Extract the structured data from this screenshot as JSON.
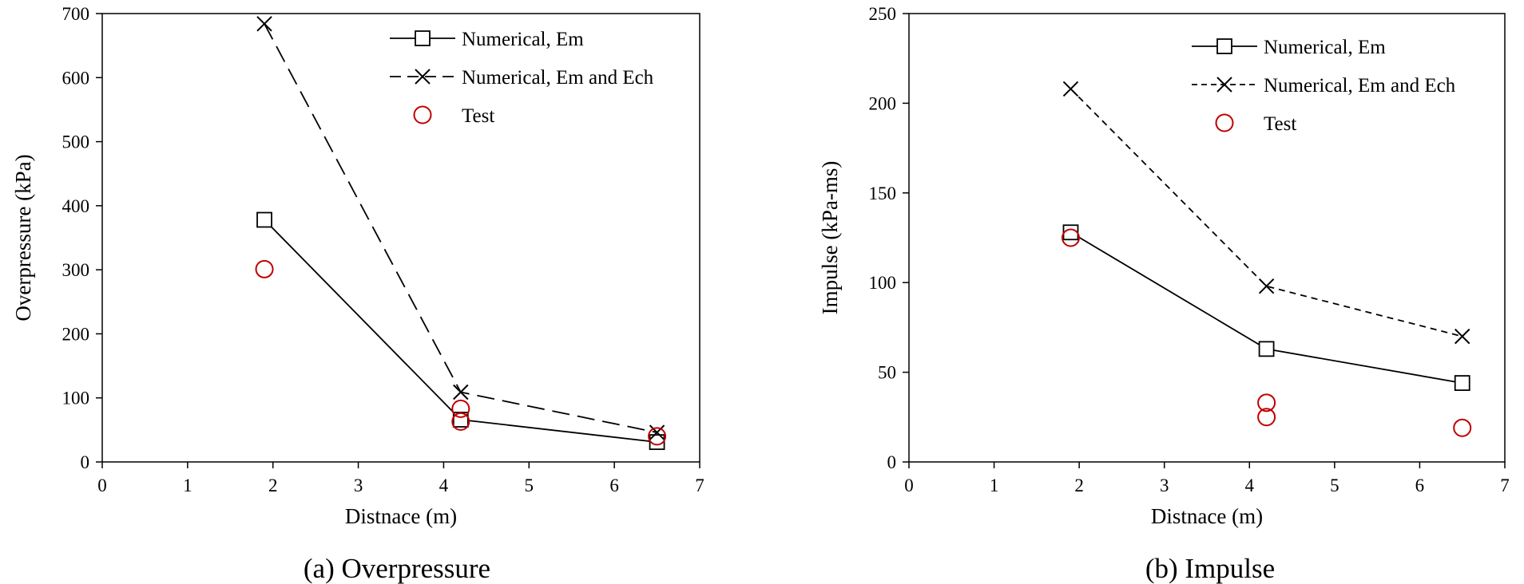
{
  "chart_data": [
    {
      "type": "line",
      "caption": "(a) Overpressure",
      "xlabel": "Distnace (m)",
      "ylabel": "Overpressure (kPa)",
      "xlim": [
        0,
        7
      ],
      "ylim": [
        0,
        700
      ],
      "xticks": [
        0,
        1,
        2,
        3,
        4,
        5,
        6,
        7
      ],
      "yticks": [
        0,
        100,
        200,
        300,
        400,
        500,
        600,
        700
      ],
      "grid": false,
      "legend_position": "top-right",
      "series": [
        {
          "name": "Numerical, Em",
          "marker": "square",
          "line": "solid",
          "color": "#000000",
          "x": [
            1.9,
            4.2,
            6.5
          ],
          "y": [
            378,
            66,
            31
          ]
        },
        {
          "name": "Numerical, Em and Ech",
          "marker": "x",
          "line": "long-dash",
          "color": "#000000",
          "x": [
            1.9,
            4.2,
            6.5
          ],
          "y": [
            684,
            109,
            46
          ]
        },
        {
          "name": "Test",
          "marker": "circle",
          "line": "none",
          "color": "#c00000",
          "x": [
            1.9,
            4.2,
            4.2,
            6.5
          ],
          "y": [
            301,
            83,
            63,
            40
          ]
        }
      ]
    },
    {
      "type": "line",
      "caption": "(b) Impulse",
      "xlabel": "Distnace (m)",
      "ylabel": "Impulse (kPa-ms)",
      "xlim": [
        0,
        7
      ],
      "ylim": [
        0,
        250
      ],
      "xticks": [
        0,
        1,
        2,
        3,
        4,
        5,
        6,
        7
      ],
      "yticks": [
        0,
        50,
        100,
        150,
        200,
        250
      ],
      "grid": false,
      "legend_position": "top-right",
      "series": [
        {
          "name": "Numerical, Em",
          "marker": "square",
          "line": "solid",
          "color": "#000000",
          "x": [
            1.9,
            4.2,
            6.5
          ],
          "y": [
            128,
            63,
            44
          ]
        },
        {
          "name": "Numerical, Em and Ech",
          "marker": "x",
          "line": "short-dash",
          "color": "#000000",
          "x": [
            1.9,
            4.2,
            6.5
          ],
          "y": [
            208,
            98,
            70
          ]
        },
        {
          "name": "Test",
          "marker": "circle",
          "line": "none",
          "color": "#c00000",
          "x": [
            1.9,
            4.2,
            4.2,
            6.5
          ],
          "y": [
            125,
            33,
            25,
            19
          ]
        }
      ]
    }
  ]
}
